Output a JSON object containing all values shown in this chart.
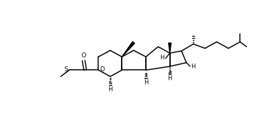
{
  "bg_color": "#ffffff",
  "line_color": "#000000",
  "lw": 1.1,
  "fs": 6.0,
  "figsize": [
    4.05,
    1.78
  ],
  "dpi": 100,
  "xlim": [
    0,
    405
  ],
  "ylim": [
    0,
    178
  ]
}
